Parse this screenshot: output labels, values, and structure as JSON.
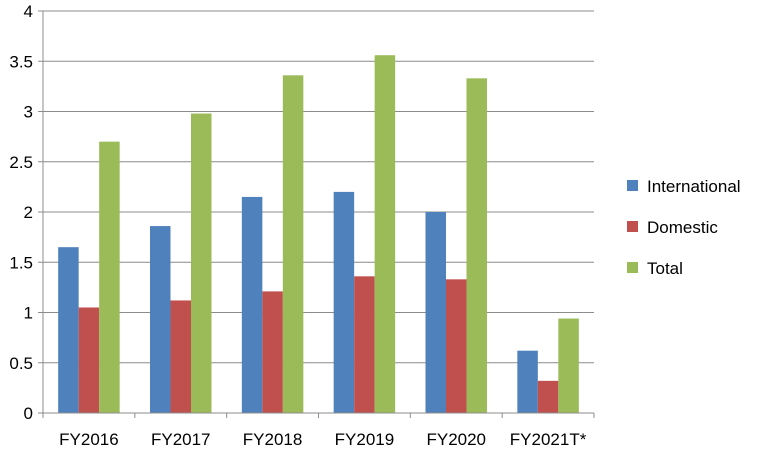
{
  "chart_data": {
    "type": "bar",
    "title": "",
    "xlabel": "",
    "ylabel": "",
    "categories": [
      "FY2016",
      "FY2017",
      "FY2018",
      "FY2019",
      "FY2020",
      "FY2021T*"
    ],
    "series": [
      {
        "name": "International",
        "color": "#4f81bd",
        "values": [
          1.65,
          1.86,
          2.15,
          2.2,
          2.0,
          0.62
        ]
      },
      {
        "name": "Domestic",
        "color": "#c0504d",
        "values": [
          1.05,
          1.12,
          1.21,
          1.36,
          1.33,
          0.32
        ]
      },
      {
        "name": "Total",
        "color": "#9bbb59",
        "values": [
          2.7,
          2.98,
          3.36,
          3.56,
          3.33,
          0.94
        ]
      }
    ],
    "ylim": [
      0,
      4
    ],
    "yticks": [
      "0",
      "0.5",
      "1",
      "1.5",
      "2",
      "2.5",
      "3",
      "3.5",
      "4"
    ],
    "grid": true,
    "legend_position": "right"
  }
}
